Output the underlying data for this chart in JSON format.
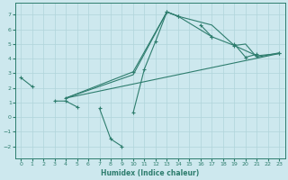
{
  "title": "",
  "xlabel": "Humidex (Indice chaleur)",
  "bg_color": "#cde8ee",
  "grid_color": "#b0d4da",
  "line_color": "#2e7d6e",
  "xlim": [
    -0.5,
    23.5
  ],
  "ylim": [
    -2.8,
    7.8
  ],
  "xticks": [
    0,
    1,
    2,
    3,
    4,
    5,
    6,
    7,
    8,
    9,
    10,
    11,
    12,
    13,
    14,
    15,
    16,
    17,
    18,
    19,
    20,
    21,
    22,
    23
  ],
  "yticks": [
    -2,
    -1,
    0,
    1,
    2,
    3,
    4,
    5,
    6,
    7
  ],
  "line1": {
    "segments": [
      {
        "x": [
          0,
          1
        ],
        "y": [
          2.7,
          2.1
        ]
      },
      {
        "x": [
          3,
          4,
          5
        ],
        "y": [
          1.1,
          1.1,
          0.7
        ]
      },
      {
        "x": [
          7,
          8,
          9
        ],
        "y": [
          0.6,
          -1.5,
          -2.0
        ]
      },
      {
        "x": [
          10,
          11,
          12,
          13,
          14
        ],
        "y": [
          0.3,
          3.3,
          5.2,
          7.2,
          6.9
        ]
      },
      {
        "x": [
          16,
          17
        ],
        "y": [
          6.3,
          5.5
        ]
      },
      {
        "x": [
          19,
          20,
          21
        ],
        "y": [
          5.0,
          4.1,
          4.3
        ]
      },
      {
        "x": [
          23
        ],
        "y": [
          4.4
        ]
      }
    ]
  },
  "line2": {
    "x": [
      4,
      23
    ],
    "y": [
      1.3,
      4.35
    ]
  },
  "line3": {
    "x": [
      4,
      10,
      13,
      14,
      17,
      19,
      21,
      23
    ],
    "y": [
      1.3,
      3.1,
      7.2,
      6.9,
      5.5,
      4.9,
      4.2,
      4.35
    ]
  },
  "line4": {
    "x": [
      4,
      10,
      13,
      14,
      17,
      19,
      20,
      21,
      23
    ],
    "y": [
      1.3,
      2.9,
      7.2,
      6.9,
      6.3,
      4.9,
      5.0,
      4.1,
      4.4
    ]
  }
}
